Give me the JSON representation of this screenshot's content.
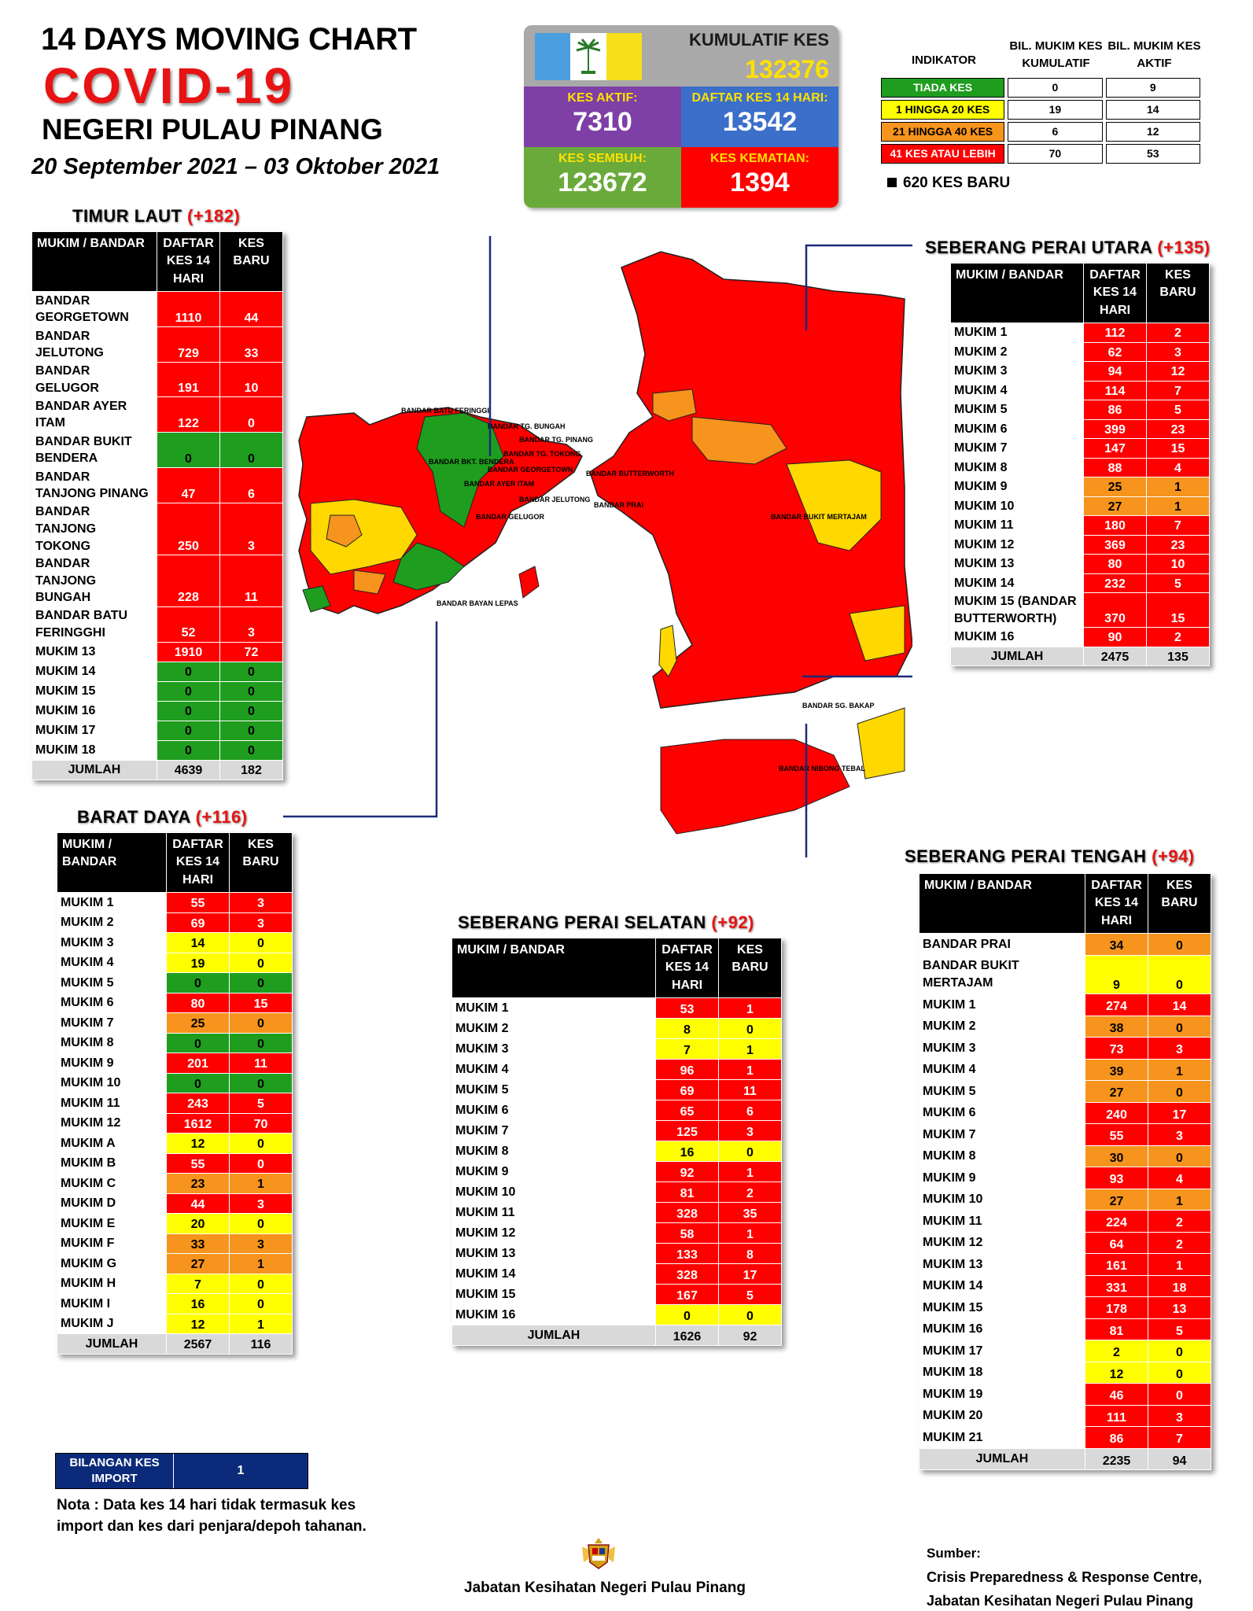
{
  "header": {
    "line1": "14  DAYS MOVING CHART",
    "line2": "COVID-19",
    "line3": "NEGERI PULAU PINANG",
    "dates": "20 September 2021 – 03 Oktober 2021"
  },
  "summary": {
    "kumulatif_label": "KUMULATIF KES",
    "kumulatif_value": "132376",
    "aktif_label": "KES AKTIF:",
    "aktif_value": "7310",
    "daftar_label": "DAFTAR KES 14 HARI:",
    "daftar_value": "13542",
    "sembuh_label": "KES SEMBUH:",
    "sembuh_value": "123672",
    "kematian_label": "KES KEMATIAN:",
    "kematian_value": "1394",
    "flag_colors": [
      "#4b9fe0",
      "#ffffff",
      "#f7e01a"
    ]
  },
  "indicator": {
    "col1": "INDIKATOR",
    "col2": "BIL. MUKIM KES KUMULATIF",
    "col3": "BIL. MUKIM KES AKTIF",
    "rows": [
      {
        "label": "TIADA KES",
        "a": "0",
        "b": "9",
        "color": "#1f9d1f"
      },
      {
        "label": "1 HINGGA 20 KES",
        "a": "19",
        "b": "14",
        "color": "#ffff00"
      },
      {
        "label": "21 HINGGA 40 KES",
        "a": "6",
        "b": "12",
        "color": "#f7941d"
      },
      {
        "label": "41 KES ATAU LEBIH",
        "a": "70",
        "b": "53",
        "color": "#ff0000"
      }
    ],
    "new_cases": "620 KES BARU"
  },
  "colors": {
    "red": "#ff0000",
    "orange": "#f7941d",
    "yellow": "#ffff00",
    "green": "#1f9d1f"
  },
  "map_labels": {
    "batu_feringgi": "BANDAR BATU FERINGGI",
    "tg_bungah": "BANDAR TG. BUNGAH",
    "tg_pinang": "BANDAR TG. PINANG",
    "tg_tokong": "BANDAR TG.  TOKONG",
    "georgetown": "BANDAR GEORGETOWN",
    "ayer_itam": "BANDAR AYER ITAM",
    "jelutong": "BANDAR JELUTONG",
    "gelugor": "BANDAR GELUGOR",
    "bkt_bendera": "BANDAR BKT. BENDERA",
    "butterworth": "BANDAR BUTTERWORTH",
    "prai": "BANDAR PRAI",
    "bukit_mertajam": "BANDAR BUKIT MERTAJAM",
    "sg_bakap": "BANDAR SG. BAKAP",
    "nibong_tebal": "BANDAR NIBONG TEBAL",
    "bayan_lepas": "BANDAR BAYAN LEPAS"
  },
  "timur_laut": {
    "title": "TIMUR LAUT",
    "plus": "(+182)",
    "headers": [
      "MUKIM / BANDAR",
      "DAFTAR KES 14 HARI",
      "KES BARU"
    ],
    "rows": [
      {
        "name": "BANDAR GEORGETOWN",
        "a": "1110",
        "b": "44",
        "ca": "r",
        "cb": "r"
      },
      {
        "name": "BANDAR JELUTONG",
        "a": "729",
        "b": "33",
        "ca": "r",
        "cb": "r"
      },
      {
        "name": "BANDAR GELUGOR",
        "a": "191",
        "b": "10",
        "ca": "r",
        "cb": "r"
      },
      {
        "name": "BANDAR AYER ITAM",
        "a": "122",
        "b": "0",
        "ca": "r",
        "cb": "r"
      },
      {
        "name": "BANDAR BUKIT BENDERA",
        "a": "0",
        "b": "0",
        "ca": "g",
        "cb": "g"
      },
      {
        "name": "BANDAR TANJONG PINANG",
        "a": "47",
        "b": "6",
        "ca": "r",
        "cb": "r"
      },
      {
        "name": "BANDAR TANJONG TOKONG",
        "a": "250",
        "b": "3",
        "ca": "r",
        "cb": "r"
      },
      {
        "name": "BANDAR TANJONG BUNGAH",
        "a": "228",
        "b": "11",
        "ca": "r",
        "cb": "r"
      },
      {
        "name": "BANDAR BATU FERINGGHI",
        "a": "52",
        "b": "3",
        "ca": "r",
        "cb": "r"
      },
      {
        "name": "MUKIM 13",
        "a": "1910",
        "b": "72",
        "ca": "r",
        "cb": "r"
      },
      {
        "name": "MUKIM 14",
        "a": "0",
        "b": "0",
        "ca": "g",
        "cb": "g"
      },
      {
        "name": "MUKIM 15",
        "a": "0",
        "b": "0",
        "ca": "g",
        "cb": "g"
      },
      {
        "name": "MUKIM 16",
        "a": "0",
        "b": "0",
        "ca": "g",
        "cb": "g"
      },
      {
        "name": "MUKIM 17",
        "a": "0",
        "b": "0",
        "ca": "g",
        "cb": "g"
      },
      {
        "name": "MUKIM 18",
        "a": "0",
        "b": "0",
        "ca": "g",
        "cb": "g"
      }
    ],
    "total_label": "JUMLAH",
    "total_a": "4639",
    "total_b": "182"
  },
  "barat_daya": {
    "title": "BARAT DAYA",
    "plus": "(+116)",
    "headers": [
      "MUKIM / BANDAR",
      "DAFTAR KES 14 HARI",
      "KES BARU"
    ],
    "rows": [
      {
        "name": "MUKIM 1",
        "a": "55",
        "b": "3",
        "ca": "r",
        "cb": "r"
      },
      {
        "name": "MUKIM 2",
        "a": "69",
        "b": "3",
        "ca": "r",
        "cb": "r"
      },
      {
        "name": "MUKIM 3",
        "a": "14",
        "b": "0",
        "ca": "y",
        "cb": "y"
      },
      {
        "name": "MUKIM 4",
        "a": "19",
        "b": "0",
        "ca": "y",
        "cb": "y"
      },
      {
        "name": "MUKIM 5",
        "a": "0",
        "b": "0",
        "ca": "g",
        "cb": "g"
      },
      {
        "name": "MUKIM 6",
        "a": "80",
        "b": "15",
        "ca": "r",
        "cb": "r"
      },
      {
        "name": "MUKIM 7",
        "a": "25",
        "b": "0",
        "ca": "o",
        "cb": "o"
      },
      {
        "name": "MUKIM 8",
        "a": "0",
        "b": "0",
        "ca": "g",
        "cb": "g"
      },
      {
        "name": "MUKIM 9",
        "a": "201",
        "b": "11",
        "ca": "r",
        "cb": "r"
      },
      {
        "name": "MUKIM 10",
        "a": "0",
        "b": "0",
        "ca": "g",
        "cb": "g"
      },
      {
        "name": "MUKIM 11",
        "a": "243",
        "b": "5",
        "ca": "r",
        "cb": "r"
      },
      {
        "name": "MUKIM 12",
        "a": "1612",
        "b": "70",
        "ca": "r",
        "cb": "r"
      },
      {
        "name": "MUKIM A",
        "a": "12",
        "b": "0",
        "ca": "y",
        "cb": "y"
      },
      {
        "name": "MUKIM B",
        "a": "55",
        "b": "0",
        "ca": "r",
        "cb": "r"
      },
      {
        "name": "MUKIM C",
        "a": "23",
        "b": "1",
        "ca": "o",
        "cb": "o"
      },
      {
        "name": "MUKIM D",
        "a": "44",
        "b": "3",
        "ca": "r",
        "cb": "r"
      },
      {
        "name": "MUKIM E",
        "a": "20",
        "b": "0",
        "ca": "y",
        "cb": "y"
      },
      {
        "name": "MUKIM F",
        "a": "33",
        "b": "3",
        "ca": "o",
        "cb": "o"
      },
      {
        "name": "MUKIM G",
        "a": "27",
        "b": "1",
        "ca": "o",
        "cb": "o"
      },
      {
        "name": "MUKIM H",
        "a": "7",
        "b": "0",
        "ca": "y",
        "cb": "y"
      },
      {
        "name": "MUKIM I",
        "a": "16",
        "b": "0",
        "ca": "y",
        "cb": "y"
      },
      {
        "name": "MUKIM J",
        "a": "12",
        "b": "1",
        "ca": "y",
        "cb": "y"
      }
    ],
    "total_label": "JUMLAH",
    "total_a": "2567",
    "total_b": "116"
  },
  "sp_utara": {
    "title": "SEBERANG PERAI UTARA",
    "plus": "(+135)",
    "headers": [
      "MUKIM / BANDAR",
      "DAFTAR KES 14 HARI",
      "KES BARU"
    ],
    "rows": [
      {
        "name": "MUKIM 1",
        "a": "112",
        "b": "2",
        "ca": "r",
        "cb": "r"
      },
      {
        "name": "MUKIM 2",
        "a": "62",
        "b": "3",
        "ca": "r",
        "cb": "r"
      },
      {
        "name": "MUKIM 3",
        "a": "94",
        "b": "12",
        "ca": "r",
        "cb": "r"
      },
      {
        "name": "MUKIM 4",
        "a": "114",
        "b": "7",
        "ca": "r",
        "cb": "r"
      },
      {
        "name": "MUKIM 5",
        "a": "86",
        "b": "5",
        "ca": "r",
        "cb": "r"
      },
      {
        "name": "MUKIM 6",
        "a": "399",
        "b": "23",
        "ca": "r",
        "cb": "r"
      },
      {
        "name": "MUKIM 7",
        "a": "147",
        "b": "15",
        "ca": "r",
        "cb": "r"
      },
      {
        "name": "MUKIM 8",
        "a": "88",
        "b": "4",
        "ca": "r",
        "cb": "r"
      },
      {
        "name": "MUKIM 9",
        "a": "25",
        "b": "1",
        "ca": "o",
        "cb": "o"
      },
      {
        "name": "MUKIM 10",
        "a": "27",
        "b": "1",
        "ca": "o",
        "cb": "o"
      },
      {
        "name": "MUKIM 11",
        "a": "180",
        "b": "7",
        "ca": "r",
        "cb": "r"
      },
      {
        "name": "MUKIM 12",
        "a": "369",
        "b": "23",
        "ca": "r",
        "cb": "r"
      },
      {
        "name": "MUKIM 13",
        "a": "80",
        "b": "10",
        "ca": "r",
        "cb": "r"
      },
      {
        "name": "MUKIM 14",
        "a": "232",
        "b": "5",
        "ca": "r",
        "cb": "r"
      },
      {
        "name": "MUKIM 15 (BANDAR BUTTERWORTH)",
        "a": "370",
        "b": "15",
        "ca": "r",
        "cb": "r"
      },
      {
        "name": "MUKIM 16",
        "a": "90",
        "b": "2",
        "ca": "r",
        "cb": "r"
      }
    ],
    "total_label": "JUMLAH",
    "total_a": "2475",
    "total_b": "135"
  },
  "sp_selatan": {
    "title": "SEBERANG PERAI SELATAN",
    "plus": "(+92)",
    "headers": [
      "MUKIM / BANDAR",
      "DAFTAR KES 14 HARI",
      "KES BARU"
    ],
    "rows": [
      {
        "name": "MUKIM 1",
        "a": "53",
        "b": "1",
        "ca": "r",
        "cb": "r"
      },
      {
        "name": "MUKIM 2",
        "a": "8",
        "b": "0",
        "ca": "y",
        "cb": "y"
      },
      {
        "name": "MUKIM 3",
        "a": "7",
        "b": "1",
        "ca": "y",
        "cb": "y"
      },
      {
        "name": "MUKIM 4",
        "a": "96",
        "b": "1",
        "ca": "r",
        "cb": "r"
      },
      {
        "name": "MUKIM 5",
        "a": "69",
        "b": "11",
        "ca": "r",
        "cb": "r"
      },
      {
        "name": "MUKIM 6",
        "a": "65",
        "b": "6",
        "ca": "r",
        "cb": "r"
      },
      {
        "name": "MUKIM 7",
        "a": "125",
        "b": "3",
        "ca": "r",
        "cb": "r"
      },
      {
        "name": "MUKIM 8",
        "a": "16",
        "b": "0",
        "ca": "y",
        "cb": "y"
      },
      {
        "name": "MUKIM 9",
        "a": "92",
        "b": "1",
        "ca": "r",
        "cb": "r"
      },
      {
        "name": "MUKIM 10",
        "a": "81",
        "b": "2",
        "ca": "r",
        "cb": "r"
      },
      {
        "name": "MUKIM 11",
        "a": "328",
        "b": "35",
        "ca": "r",
        "cb": "r"
      },
      {
        "name": "MUKIM 12",
        "a": "58",
        "b": "1",
        "ca": "r",
        "cb": "r"
      },
      {
        "name": "MUKIM 13",
        "a": "133",
        "b": "8",
        "ca": "r",
        "cb": "r"
      },
      {
        "name": "MUKIM 14",
        "a": "328",
        "b": "17",
        "ca": "r",
        "cb": "r"
      },
      {
        "name": "MUKIM 15",
        "a": "167",
        "b": "5",
        "ca": "r",
        "cb": "r"
      },
      {
        "name": "MUKIM 16",
        "a": "0",
        "b": "0",
        "ca": "y",
        "cb": "y"
      }
    ],
    "total_label": "JUMLAH",
    "total_a": "1626",
    "total_b": "92"
  },
  "sp_tengah": {
    "title": "SEBERANG PERAI TENGAH",
    "plus": "(+94)",
    "headers": [
      "MUKIM / BANDAR",
      "DAFTAR KES 14 HARI",
      "KES BARU"
    ],
    "rows": [
      {
        "name": "BANDAR PRAI",
        "a": "34",
        "b": "0",
        "ca": "o",
        "cb": "o"
      },
      {
        "name": "BANDAR BUKIT MERTAJAM",
        "a": "9",
        "b": "0",
        "ca": "y",
        "cb": "y"
      },
      {
        "name": "MUKIM 1",
        "a": "274",
        "b": "14",
        "ca": "r",
        "cb": "r"
      },
      {
        "name": "MUKIM 2",
        "a": "38",
        "b": "0",
        "ca": "o",
        "cb": "o"
      },
      {
        "name": "MUKIM 3",
        "a": "73",
        "b": "3",
        "ca": "r",
        "cb": "r"
      },
      {
        "name": "MUKIM 4",
        "a": "39",
        "b": "1",
        "ca": "o",
        "cb": "o"
      },
      {
        "name": "MUKIM 5",
        "a": "27",
        "b": "0",
        "ca": "o",
        "cb": "o"
      },
      {
        "name": "MUKIM 6",
        "a": "240",
        "b": "17",
        "ca": "r",
        "cb": "r"
      },
      {
        "name": "MUKIM 7",
        "a": "55",
        "b": "3",
        "ca": "r",
        "cb": "r"
      },
      {
        "name": "MUKIM 8",
        "a": "30",
        "b": "0",
        "ca": "o",
        "cb": "o"
      },
      {
        "name": "MUKIM 9",
        "a": "93",
        "b": "4",
        "ca": "r",
        "cb": "r"
      },
      {
        "name": "MUKIM 10",
        "a": "27",
        "b": "1",
        "ca": "o",
        "cb": "o"
      },
      {
        "name": "MUKIM 11",
        "a": "224",
        "b": "2",
        "ca": "r",
        "cb": "r"
      },
      {
        "name": "MUKIM 12",
        "a": "64",
        "b": "2",
        "ca": "r",
        "cb": "r"
      },
      {
        "name": "MUKIM 13",
        "a": "161",
        "b": "1",
        "ca": "r",
        "cb": "r"
      },
      {
        "name": "MUKIM 14",
        "a": "331",
        "b": "18",
        "ca": "r",
        "cb": "r"
      },
      {
        "name": "MUKIM 15",
        "a": "178",
        "b": "13",
        "ca": "r",
        "cb": "r"
      },
      {
        "name": "MUKIM 16",
        "a": "81",
        "b": "5",
        "ca": "r",
        "cb": "r"
      },
      {
        "name": "MUKIM 17",
        "a": "2",
        "b": "0",
        "ca": "y",
        "cb": "y"
      },
      {
        "name": "MUKIM 18",
        "a": "12",
        "b": "0",
        "ca": "y",
        "cb": "y"
      },
      {
        "name": "MUKIM 19",
        "a": "46",
        "b": "0",
        "ca": "r",
        "cb": "r"
      },
      {
        "name": "MUKIM 20",
        "a": "111",
        "b": "3",
        "ca": "r",
        "cb": "r"
      },
      {
        "name": "MUKIM 21",
        "a": "86",
        "b": "7",
        "ca": "r",
        "cb": "r"
      }
    ],
    "total_label": "JUMLAH",
    "total_a": "2235",
    "total_b": "94"
  },
  "import_box": {
    "label": "BILANGAN KES IMPORT",
    "value": "1"
  },
  "nota": "Nota : Data kes 14 hari tidak termasuk kes import dan kes dari penjara/depoh tahanan.",
  "footer": "Jabatan Kesihatan Negeri Pulau Pinang",
  "sumber_label": "Sumber:",
  "sumber_line1": "Crisis Preparedness & Response Centre,",
  "sumber_line2": "Jabatan Kesihatan Negeri Pulau Pinang"
}
